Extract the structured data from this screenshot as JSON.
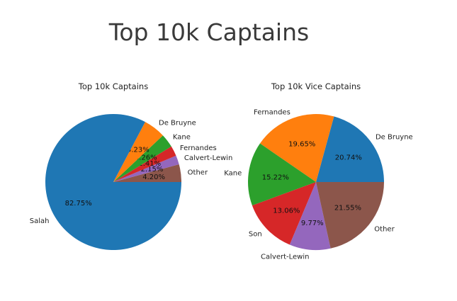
{
  "page": {
    "title": "Top 10k Captains"
  },
  "chart_data": [
    {
      "type": "pie",
      "title": "Top 10k Captains",
      "start_angle_deg": 0,
      "direction": "counterclockwise",
      "labels": [
        "Other",
        "Calvert-Lewin",
        "Fernandes",
        "Kane",
        "De Bruyne",
        "Salah"
      ],
      "values": [
        4.2,
        2.15,
        2.41,
        3.26,
        5.23,
        82.75
      ],
      "pct_labels": [
        "4.20%",
        "2.15%",
        "2.41%",
        "3.26%",
        "5.23%",
        "82.75%"
      ],
      "colors": [
        "#8c564b",
        "#9467bd",
        "#d62728",
        "#2ca02c",
        "#ff7f0e",
        "#1f77b4"
      ]
    },
    {
      "type": "pie",
      "title": "Top 10k Vice Captains",
      "start_angle_deg": 0,
      "direction": "counterclockwise",
      "labels": [
        "De Bruyne",
        "Fernandes",
        "Kane",
        "Son",
        "Calvert-Lewin",
        "Other"
      ],
      "values": [
        20.74,
        19.65,
        15.22,
        13.06,
        9.77,
        21.55
      ],
      "pct_labels": [
        "20.74%",
        "19.65%",
        "15.22%",
        "13.06%",
        "9.77%",
        "21.55%"
      ],
      "colors": [
        "#1f77b4",
        "#ff7f0e",
        "#2ca02c",
        "#d62728",
        "#9467bd",
        "#8c564b"
      ]
    }
  ]
}
